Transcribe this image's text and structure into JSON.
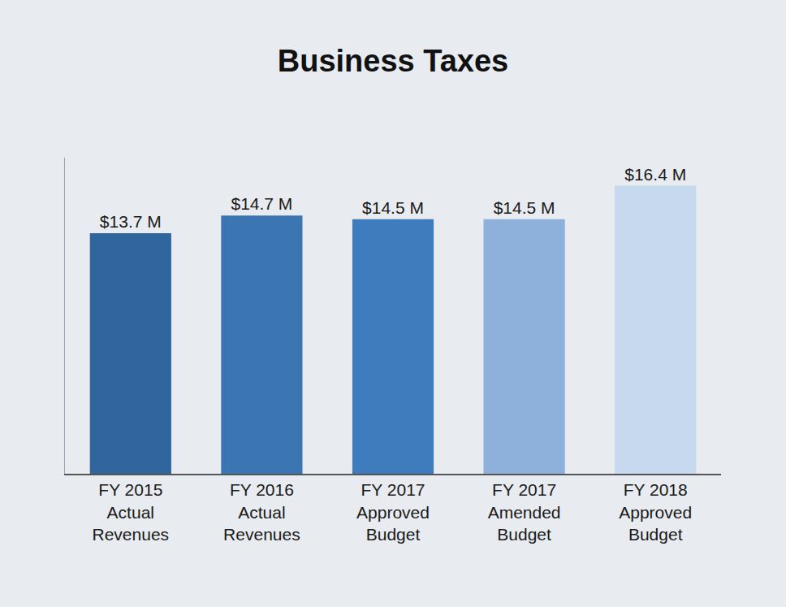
{
  "chart_data": {
    "type": "bar",
    "title": "Business Taxes",
    "categories": [
      "FY 2015 Actual Revenues",
      "FY 2016 Actual Revenues",
      "FY 2017 Approved Budget",
      "FY 2017 Amended Budget",
      "FY 2018 Approved Budget"
    ],
    "values": [
      13.7,
      14.7,
      14.5,
      14.5,
      16.4
    ],
    "value_labels": [
      "$13.7 M",
      "$14.7 M",
      "$14.5 M",
      "$14.5 M",
      "$16.4 M"
    ],
    "colors": [
      "#2f669d",
      "#3b76b3",
      "#3e7cbd",
      "#8db1db",
      "#c6d9ee"
    ],
    "ylim": [
      0,
      18
    ],
    "data_labels": true,
    "tick_labels": "x",
    "grid": false
  }
}
